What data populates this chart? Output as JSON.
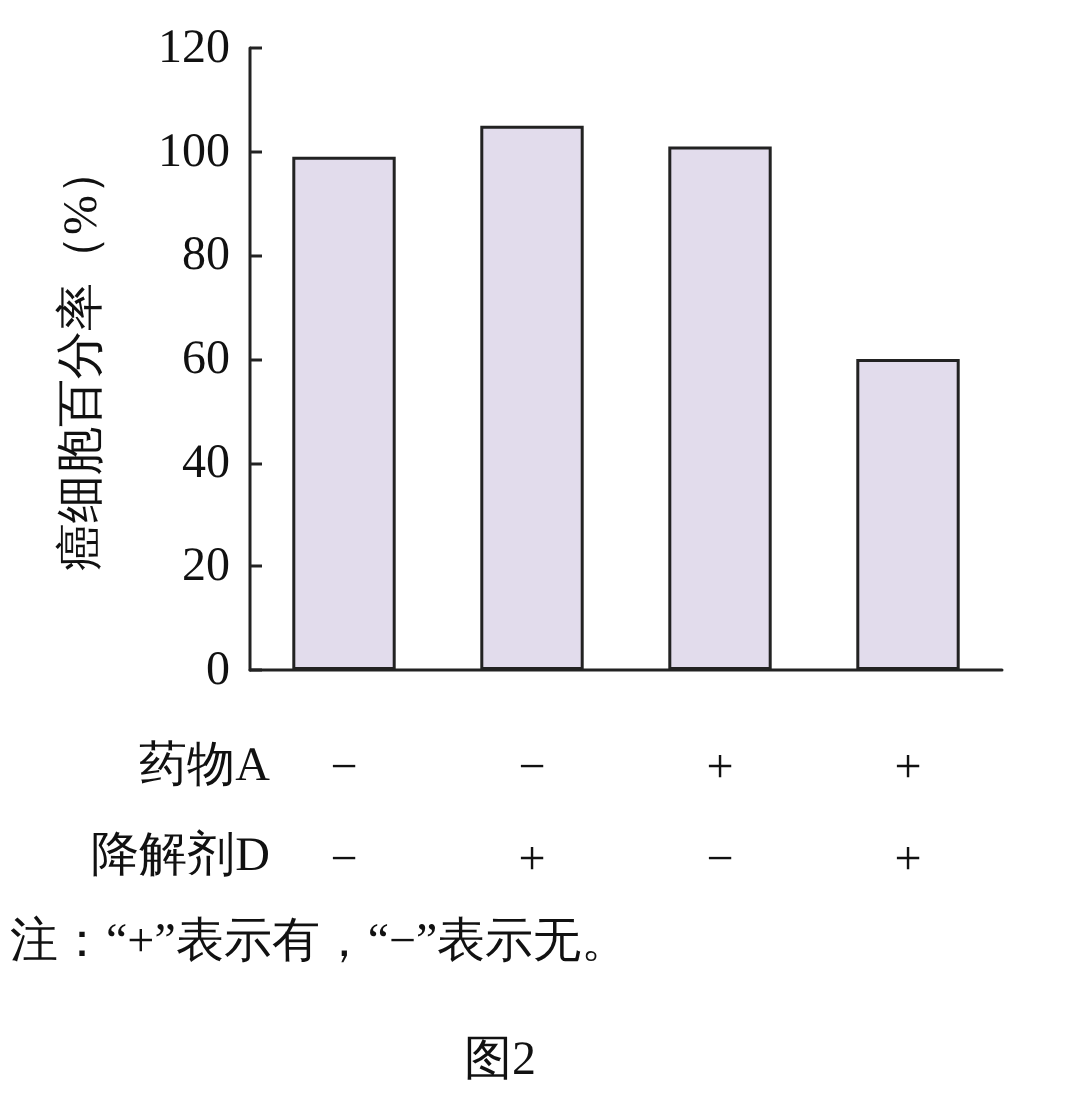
{
  "chart_data": {
    "type": "bar",
    "ylabel": "癌细胞百分率（%）",
    "categories": [
      "−\n−",
      "−\n+",
      "+\n−",
      "+\n+"
    ],
    "values": [
      99,
      105,
      101,
      60
    ],
    "color": "#e2dcec",
    "ylim": [
      0,
      120
    ],
    "yticks": [
      0,
      20,
      40,
      60,
      80,
      100,
      120
    ],
    "grid": false,
    "annotations": [
      "药物A",
      "降解剂D",
      "注：“+”表示有，“−”表示无。",
      "图2"
    ]
  }
}
